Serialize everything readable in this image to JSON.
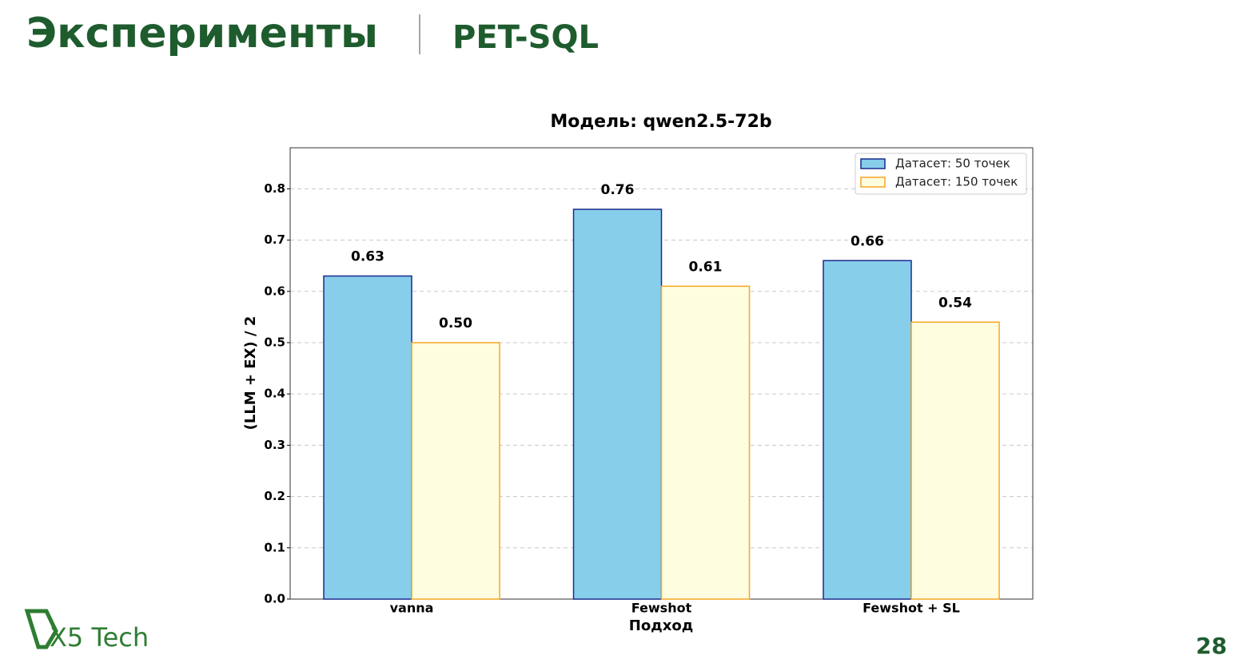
{
  "slide": {
    "title": "Эксперименты",
    "subtitle": "PET-SQL",
    "logo": "X5 Tech",
    "page": "28"
  },
  "chart_data": {
    "type": "bar",
    "title": "Модель: qwen2.5-72b",
    "x_label": "Подход",
    "y_label": "(LLM + EX) / 2",
    "categories": [
      "vanna",
      "Fewshot",
      "Fewshot + SL"
    ],
    "series": [
      {
        "name": "Датасет: 50 точек",
        "color": "#87ceeb",
        "edge_color": "#1a2a8c",
        "values": [
          0.63,
          0.76,
          0.66
        ],
        "value_labels": [
          "0.63",
          "0.76",
          "0.66"
        ]
      },
      {
        "name": "Датасет: 150 точек",
        "color": "#fffde0",
        "edge_color": "#f5a623",
        "values": [
          0.5,
          0.61,
          0.54
        ],
        "value_labels": [
          "0.50",
          "0.61",
          "0.54"
        ]
      }
    ],
    "ylim": [
      0,
      0.88
    ],
    "yticks": [
      {
        "value": 0,
        "label": "0.0"
      },
      0.1,
      0.2,
      0.3,
      0.4,
      0.5,
      0.6,
      0.7,
      0.8
    ],
    "grid": true,
    "legend": "upper right"
  }
}
